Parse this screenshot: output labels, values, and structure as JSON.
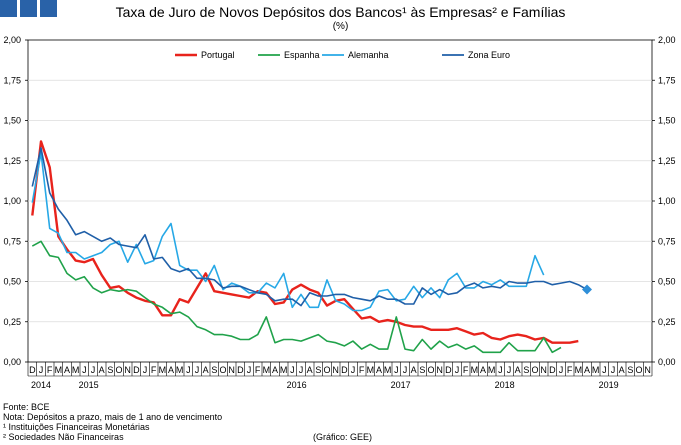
{
  "header": {
    "title": "Taxa de Juro de Novos Depósitos dos Bancos¹ às Empresas² e Famílias",
    "unit": "(%)"
  },
  "brand_color": "#2962a8",
  "footnotes": {
    "source": "Fonte: BCE",
    "note": "Nota: Depósitos a prazo, mais de 1 ano de vencimento",
    "note1": "¹ Instituições Financeiras Monetárias",
    "note2": "² Sociedades Não Financeiras",
    "credit": "(Gráfico: GEE)"
  },
  "chart_data": {
    "type": "line",
    "title": "Taxa de Juro de Novos Depósitos dos Bancos¹ às Empresas² e Famílias",
    "ylabel": "(%)",
    "ylim": [
      0,
      2
    ],
    "y_ticks": [
      "0,00",
      "0,25",
      "0,50",
      "0,75",
      "1,00",
      "1,25",
      "1,50",
      "1,75",
      "2,00"
    ],
    "x_month_labels": [
      "D",
      "J",
      "F",
      "M",
      "A",
      "M",
      "J",
      "J",
      "A",
      "S",
      "O",
      "N",
      "D",
      "J",
      "F",
      "M",
      "A",
      "M",
      "J",
      "J",
      "A",
      "S",
      "O",
      "N",
      "D",
      "J",
      "F",
      "M",
      "A",
      "M",
      "J",
      "J",
      "A",
      "S",
      "O",
      "N",
      "D",
      "J",
      "F",
      "M",
      "A",
      "M",
      "J",
      "J",
      "A",
      "S",
      "O",
      "N",
      "D",
      "J",
      "F",
      "M",
      "A",
      "M",
      "J",
      "J",
      "A",
      "S",
      "O",
      "N",
      "D",
      "J",
      "F",
      "M",
      "A",
      "M",
      "J",
      "J",
      "A",
      "S",
      "O",
      "N"
    ],
    "x_year_labels": [
      {
        "label": "2014",
        "index": 0
      },
      {
        "label": "2015",
        "index": 6
      },
      {
        "label": "2016",
        "index": 18
      },
      {
        "label": "2017",
        "index": 30
      },
      {
        "label": "2018",
        "index": 42
      },
      {
        "label": "2019",
        "index": 54
      }
    ],
    "grid": true,
    "legend_position": "top",
    "series": [
      {
        "name": "Portugal",
        "color": "#e8231c",
        "values": [
          0.91,
          1.37,
          1.21,
          0.78,
          0.7,
          0.63,
          0.62,
          0.64,
          0.54,
          0.46,
          0.47,
          0.43,
          0.4,
          0.38,
          0.37,
          0.29,
          0.29,
          0.39,
          0.37,
          0.46,
          0.55,
          0.44,
          0.43,
          0.42,
          0.41,
          0.4,
          0.44,
          0.43,
          0.36,
          0.37,
          0.45,
          0.48,
          0.45,
          0.43,
          0.35,
          0.38,
          0.39,
          0.33,
          0.27,
          0.28,
          0.25,
          0.26,
          0.25,
          0.23,
          0.22,
          0.22,
          0.2,
          0.2,
          0.2,
          0.21,
          0.19,
          0.17,
          0.18,
          0.15,
          0.14,
          0.16,
          0.17,
          0.16,
          0.14,
          0.15,
          0.12,
          0.12,
          0.12,
          0.13
        ]
      },
      {
        "name": "Espanha",
        "color": "#20a24a",
        "values": [
          0.72,
          0.75,
          0.66,
          0.65,
          0.55,
          0.51,
          0.53,
          0.46,
          0.43,
          0.45,
          0.44,
          0.45,
          0.44,
          0.4,
          0.36,
          0.34,
          0.3,
          0.31,
          0.28,
          0.22,
          0.2,
          0.17,
          0.17,
          0.16,
          0.14,
          0.14,
          0.17,
          0.28,
          0.12,
          0.14,
          0.14,
          0.13,
          0.15,
          0.17,
          0.13,
          0.12,
          0.1,
          0.13,
          0.08,
          0.11,
          0.08,
          0.08,
          0.28,
          0.08,
          0.07,
          0.14,
          0.08,
          0.13,
          0.09,
          0.11,
          0.08,
          0.1,
          0.06,
          0.06,
          0.06,
          0.12,
          0.07,
          0.07,
          0.07,
          0.15,
          0.06,
          0.09
        ]
      },
      {
        "name": "Alemanha",
        "color": "#27a8e6",
        "values": [
          0.99,
          1.3,
          0.83,
          0.8,
          0.68,
          0.68,
          0.64,
          0.66,
          0.68,
          0.73,
          0.75,
          0.62,
          0.73,
          0.61,
          0.63,
          0.78,
          0.86,
          0.6,
          0.57,
          0.57,
          0.5,
          0.6,
          0.45,
          0.49,
          0.47,
          0.43,
          0.43,
          0.49,
          0.46,
          0.55,
          0.34,
          0.42,
          0.34,
          0.34,
          0.51,
          0.38,
          0.36,
          0.32,
          0.32,
          0.34,
          0.44,
          0.45,
          0.38,
          0.39,
          0.47,
          0.4,
          0.46,
          0.4,
          0.51,
          0.55,
          0.46,
          0.46,
          0.5,
          0.48,
          0.51,
          0.47,
          0.47,
          0.47,
          0.66,
          0.54
        ]
      },
      {
        "name": "Zona Euro",
        "color": "#1f5fa8",
        "values": [
          1.09,
          1.33,
          1.05,
          0.95,
          0.88,
          0.79,
          0.81,
          0.78,
          0.75,
          0.77,
          0.73,
          0.72,
          0.71,
          0.79,
          0.64,
          0.65,
          0.58,
          0.56,
          0.58,
          0.52,
          0.52,
          0.51,
          0.46,
          0.47,
          0.47,
          0.45,
          0.43,
          0.42,
          0.38,
          0.39,
          0.39,
          0.35,
          0.43,
          0.41,
          0.41,
          0.42,
          0.42,
          0.4,
          0.39,
          0.38,
          0.41,
          0.39,
          0.39,
          0.36,
          0.36,
          0.46,
          0.42,
          0.45,
          0.42,
          0.43,
          0.47,
          0.49,
          0.46,
          0.47,
          0.46,
          0.5,
          0.49,
          0.49,
          0.5,
          0.5,
          0.48,
          0.49,
          0.5,
          0.48,
          0.45
        ]
      }
    ]
  }
}
